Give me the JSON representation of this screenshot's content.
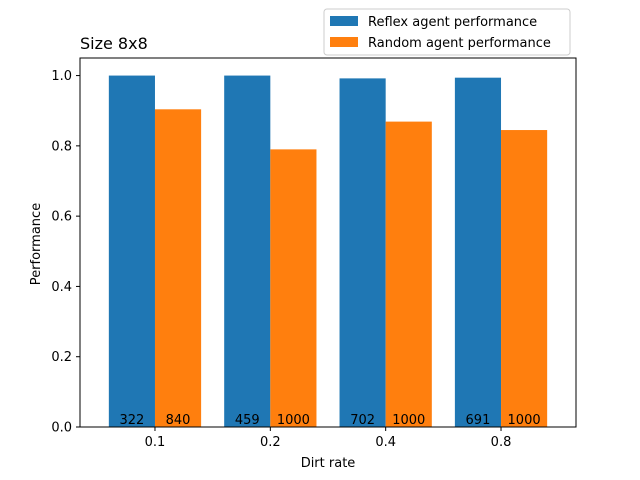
{
  "chart_data": {
    "type": "bar",
    "title": "Size 8x8",
    "xlabel": "Dirt rate",
    "ylabel": "Performance",
    "categories": [
      "0.1",
      "0.2",
      "0.4",
      "0.8"
    ],
    "ylim": [
      0,
      1.05
    ],
    "yticks": [
      "0.0",
      "0.2",
      "0.4",
      "0.6",
      "0.8",
      "1.0"
    ],
    "legend_position": "top-right (outside, above plot)",
    "grid": false,
    "series": [
      {
        "name": "Reflex agent performance",
        "color": "#1f77b4",
        "values": [
          1.0,
          1.0,
          0.992,
          0.994
        ],
        "bar_labels": [
          "322",
          "459",
          "702",
          "691"
        ]
      },
      {
        "name": "Random agent performance",
        "color": "#ff7f0e",
        "values": [
          0.904,
          0.79,
          0.869,
          0.845
        ],
        "bar_labels": [
          "840",
          "1000",
          "1000",
          "1000"
        ]
      }
    ]
  }
}
